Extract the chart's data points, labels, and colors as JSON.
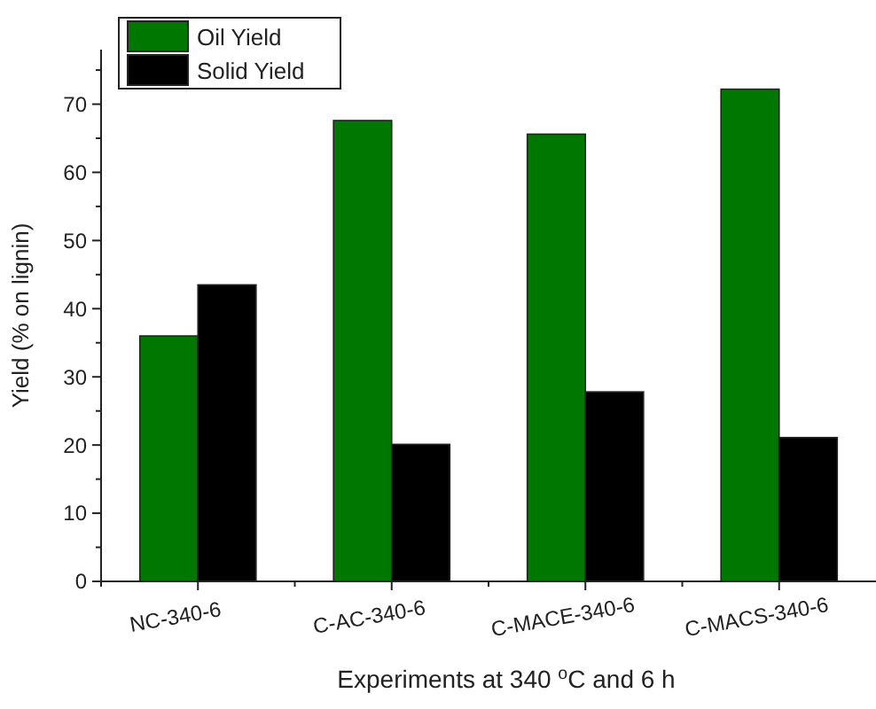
{
  "chart_data": {
    "type": "bar",
    "xlabel": "Experiments at 340 $^{o}$C and 6 h",
    "ylabel": "Yield (% on lignin)",
    "categories": [
      "NC-340-6",
      "C-AC-340-6",
      "C-MACE-340-6",
      "C-MACS-340-6"
    ],
    "series": [
      {
        "name": "Oil Yield",
        "color": "#007800",
        "values": [
          36,
          67.6,
          65.6,
          72.2
        ]
      },
      {
        "name": "Solid Yield",
        "color": "#000000",
        "values": [
          43.5,
          20.1,
          27.8,
          21.1
        ]
      }
    ],
    "ylim": [
      0,
      78
    ],
    "yticks": [
      0,
      10,
      20,
      30,
      40,
      50,
      60,
      70
    ],
    "grid": false,
    "legend": "top left"
  }
}
